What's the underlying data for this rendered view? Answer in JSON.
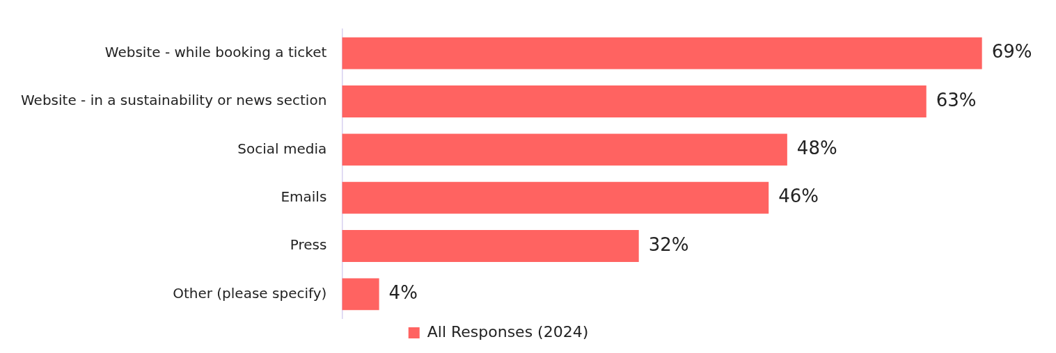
{
  "chart_data": {
    "type": "bar",
    "orientation": "horizontal",
    "categories": [
      "Website - while booking a ticket",
      "Website - in a sustainability or news section",
      "Social media",
      "Emails",
      "Press",
      "Other (please specify)"
    ],
    "series": [
      {
        "name": "All Responses (2024)",
        "color": "#ff6361",
        "values": [
          69,
          63,
          48,
          46,
          32,
          4
        ],
        "value_labels": [
          "69%",
          "63%",
          "48%",
          "46%",
          "32%",
          "4%"
        ]
      }
    ],
    "legend": "bottom",
    "grid": false,
    "tick_labels": "y"
  }
}
